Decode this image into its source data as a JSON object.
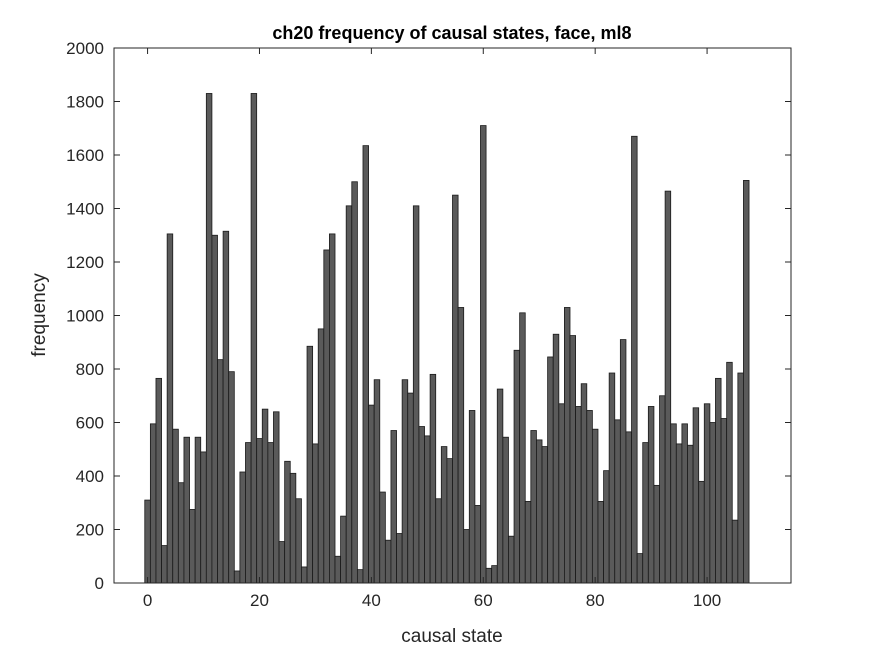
{
  "chart_data": {
    "type": "bar",
    "title": "ch20 frequency of causal states, face, ml8",
    "xlabel": "causal state",
    "ylabel": "frequency",
    "xlim": [
      -6,
      115
    ],
    "ylim": [
      0,
      2000
    ],
    "xticks": [
      0,
      20,
      40,
      60,
      80,
      100
    ],
    "yticks": [
      0,
      200,
      400,
      600,
      800,
      1000,
      1200,
      1400,
      1600,
      1800,
      2000
    ],
    "grid": false,
    "bar_color": "#5a5a5a",
    "edge_color": "#1a1a1a",
    "x": [
      0,
      1,
      2,
      3,
      4,
      5,
      6,
      7,
      8,
      9,
      10,
      11,
      12,
      13,
      14,
      15,
      16,
      17,
      18,
      19,
      20,
      21,
      22,
      23,
      24,
      25,
      26,
      27,
      28,
      29,
      30,
      31,
      32,
      33,
      34,
      35,
      36,
      37,
      38,
      39,
      40,
      41,
      42,
      43,
      44,
      45,
      46,
      47,
      48,
      49,
      50,
      51,
      52,
      53,
      54,
      55,
      56,
      57,
      58,
      59,
      60,
      61,
      62,
      63,
      64,
      65,
      66,
      67,
      68,
      69,
      70,
      71,
      72,
      73,
      74,
      75,
      76,
      77,
      78,
      79,
      80,
      81,
      82,
      83,
      84,
      85,
      86,
      87,
      88,
      89,
      90,
      91,
      92,
      93,
      94,
      95,
      96,
      97,
      98,
      99,
      100,
      101,
      102,
      103,
      104,
      105,
      106,
      107
    ],
    "values": [
      310,
      595,
      765,
      140,
      1305,
      575,
      375,
      545,
      275,
      545,
      490,
      1830,
      1300,
      835,
      1315,
      790,
      45,
      415,
      525,
      1830,
      540,
      650,
      525,
      640,
      155,
      455,
      410,
      315,
      60,
      885,
      520,
      950,
      1245,
      1305,
      100,
      250,
      1410,
      1500,
      50,
      1635,
      665,
      760,
      340,
      160,
      570,
      185,
      760,
      710,
      1410,
      585,
      550,
      780,
      315,
      510,
      465,
      1450,
      1030,
      200,
      645,
      290,
      1710,
      55,
      65,
      725,
      545,
      175,
      870,
      1010,
      305,
      570,
      535,
      510,
      845,
      930,
      670,
      1030,
      925,
      660,
      745,
      645,
      575,
      305,
      420,
      785,
      610,
      910,
      565,
      1670,
      110,
      525,
      660,
      365,
      700,
      1465,
      595,
      520,
      595,
      515,
      655,
      380,
      670,
      600,
      765,
      615,
      825,
      235,
      785,
      1505
    ]
  }
}
